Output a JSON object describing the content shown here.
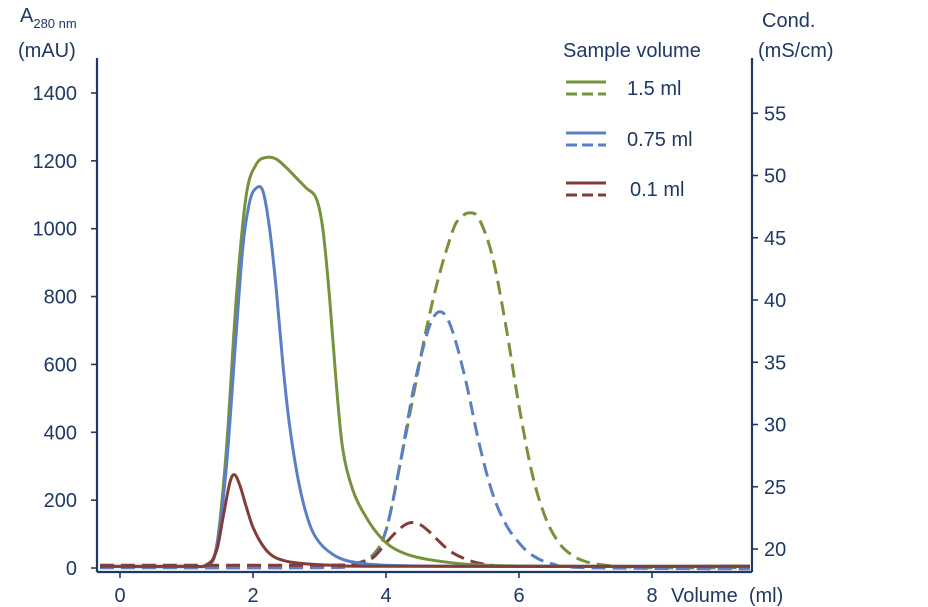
{
  "chart_data": {
    "type": "line",
    "title": "",
    "xlabel": "Volume  (ml)",
    "ylabel_left": {
      "main": "A",
      "sub": "280 nm",
      "unit": "(mAU)"
    },
    "ylabel_right": {
      "line1": "Cond.",
      "line2": "(mS/cm)"
    },
    "xlim": [
      -0.3,
      9.5
    ],
    "ylim_left": [
      0,
      1500
    ],
    "ylim_right": [
      18,
      60
    ],
    "x_ticks": [
      "0",
      "2",
      "4",
      "6",
      "8"
    ],
    "x_tick_values": [
      0,
      2,
      4,
      6,
      8
    ],
    "y_left_ticks": [
      "0",
      "200",
      "400",
      "600",
      "800",
      "1000",
      "1200",
      "1400"
    ],
    "y_left_tick_values": [
      0,
      200,
      400,
      600,
      800,
      1000,
      1200,
      1400
    ],
    "y_right_ticks": [
      "20",
      "25",
      "30",
      "35",
      "40",
      "45",
      "50",
      "55"
    ],
    "y_right_tick_values": [
      20,
      25,
      30,
      35,
      40,
      45,
      50,
      55
    ],
    "grid": false,
    "legend": {
      "title": "Sample volume",
      "placement": "top-right",
      "entries": [
        "1.5 ml",
        "0.75 ml",
        "0.1 ml"
      ]
    },
    "series": [
      {
        "name": "1.5 ml",
        "measure": "absorbance",
        "axis": "left",
        "color": "#76923c",
        "dashed": false,
        "x": [
          -0.3,
          1.0,
          1.3,
          1.45,
          1.6,
          1.75,
          1.9,
          2.05,
          2.2,
          2.35,
          2.5,
          2.65,
          2.8,
          2.95,
          3.05,
          3.15,
          3.25,
          3.35,
          3.5,
          3.7,
          3.9,
          4.1,
          4.4,
          4.8,
          5.3,
          6.0,
          7.0,
          9.5
        ],
        "y": [
          5,
          5,
          10,
          60,
          350,
          800,
          1100,
          1190,
          1210,
          1205,
          1180,
          1150,
          1120,
          1090,
          1000,
          800,
          550,
          350,
          230,
          150,
          95,
          60,
          35,
          20,
          10,
          6,
          5,
          5
        ]
      },
      {
        "name": "0.75 ml",
        "measure": "absorbance",
        "axis": "left",
        "color": "#5b7fc4",
        "dashed": false,
        "x": [
          -0.3,
          1.0,
          1.3,
          1.45,
          1.6,
          1.75,
          1.85,
          1.95,
          2.05,
          2.15,
          2.25,
          2.35,
          2.45,
          2.55,
          2.7,
          2.85,
          3.0,
          3.2,
          3.4,
          3.7,
          4.0,
          4.5,
          5.5,
          9.5
        ],
        "y": [
          4,
          4,
          10,
          60,
          300,
          700,
          950,
          1080,
          1120,
          1110,
          1000,
          820,
          600,
          420,
          240,
          130,
          75,
          40,
          22,
          12,
          8,
          6,
          5,
          5
        ]
      },
      {
        "name": "0.1 ml",
        "measure": "absorbance",
        "axis": "left",
        "color": "#843c39",
        "dashed": false,
        "x": [
          -0.3,
          1.0,
          1.3,
          1.45,
          1.55,
          1.65,
          1.72,
          1.8,
          1.9,
          2.0,
          2.15,
          2.3,
          2.5,
          2.8,
          3.2,
          4.0,
          9.5
        ],
        "y": [
          5,
          5,
          8,
          50,
          150,
          250,
          275,
          245,
          180,
          120,
          65,
          35,
          20,
          12,
          8,
          5,
          5
        ]
      },
      {
        "name": "1.5 ml",
        "measure": "conductivity",
        "axis": "right",
        "color": "#76923c",
        "dashed": true,
        "x": [
          -0.3,
          3.0,
          3.5,
          3.8,
          4.0,
          4.2,
          4.4,
          4.6,
          4.8,
          5.0,
          5.1,
          5.25,
          5.4,
          5.6,
          5.8,
          6.0,
          6.2,
          6.4,
          6.6,
          6.8,
          7.0,
          7.3,
          8.0,
          9.5
        ],
        "y": [
          18.6,
          18.6,
          18.8,
          19.5,
          21.5,
          26.5,
          32,
          37.5,
          42,
          45.5,
          46.5,
          47,
          46.5,
          43.5,
          38,
          31.5,
          26,
          22.5,
          20.5,
          19.5,
          19,
          18.7,
          18.5,
          18.5
        ]
      },
      {
        "name": "0.75 ml",
        "measure": "conductivity",
        "axis": "right",
        "color": "#5b7fc4",
        "dashed": true,
        "x": [
          -0.3,
          3.0,
          3.5,
          3.8,
          4.0,
          4.2,
          4.4,
          4.55,
          4.7,
          4.85,
          5.0,
          5.2,
          5.4,
          5.6,
          5.8,
          6.0,
          6.2,
          6.5,
          7.0,
          9.5
        ],
        "y": [
          18.5,
          18.5,
          18.7,
          19.3,
          21.5,
          26.5,
          32.5,
          36,
          38.5,
          39,
          37.5,
          33.5,
          28.5,
          24.5,
          22,
          20.5,
          19.5,
          18.8,
          18.5,
          18.4
        ]
      },
      {
        "name": "0.1 ml",
        "measure": "conductivity",
        "axis": "right",
        "color": "#843c39",
        "dashed": true,
        "x": [
          -0.3,
          3.0,
          3.5,
          3.8,
          4.0,
          4.2,
          4.35,
          4.5,
          4.65,
          4.8,
          5.0,
          5.3,
          5.6,
          6.0,
          9.5
        ],
        "y": [
          18.7,
          18.7,
          18.8,
          19.3,
          20.5,
          21.6,
          22.1,
          22.0,
          21.4,
          20.6,
          19.7,
          19.0,
          18.7,
          18.6,
          18.6
        ]
      }
    ]
  }
}
